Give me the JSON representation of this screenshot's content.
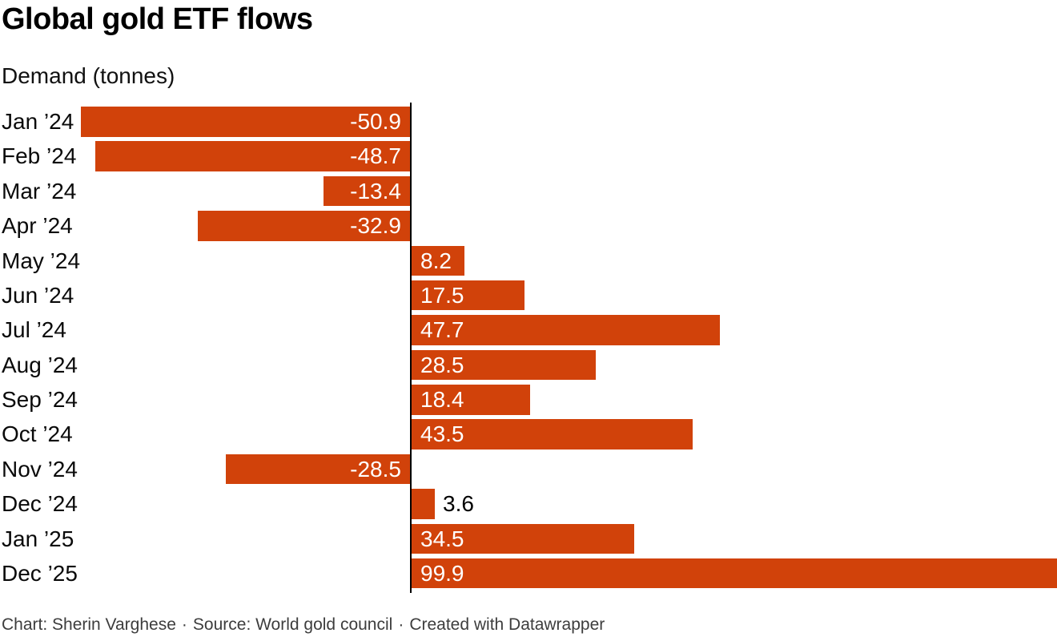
{
  "footer": {
    "chart_credit": "Chart: Sherin Varghese",
    "separator": "·",
    "source": "Source: World gold council",
    "tool_credit": "Created with Datawrapper"
  },
  "chart_data": {
    "type": "bar",
    "orientation": "horizontal",
    "title": "Global gold ETF flows",
    "subtitle": "Demand (tonnes)",
    "unit": "tonnes",
    "categories": [
      "Jan ’24",
      "Feb ’24",
      "Mar ’24",
      "Apr ’24",
      "May ’24",
      "Jun ’24",
      "Jul ’24",
      "Aug ’24",
      "Sep ’24",
      "Oct ’24",
      "Nov ’24",
      "Dec ’24",
      "Jan ’25",
      "Dec ’25"
    ],
    "values": [
      -50.9,
      -48.7,
      -13.4,
      -32.9,
      8.2,
      17.5,
      47.7,
      28.5,
      18.4,
      43.5,
      -28.5,
      3.6,
      34.5,
      99.9
    ],
    "value_labels": [
      "-50.9",
      "-48.7",
      "-13.4",
      "-32.9",
      "8.2",
      "17.5",
      "47.7",
      "28.5",
      "18.4",
      "43.5",
      "-28.5",
      "3.6",
      "34.5",
      "99.9"
    ],
    "xlim": [
      -51,
      100
    ],
    "grid": false,
    "legend": false,
    "bar_color": "#d1420a",
    "axis_color": "#000000",
    "inside_label_color": "#ffffff",
    "outside_label_color": "#000000"
  }
}
